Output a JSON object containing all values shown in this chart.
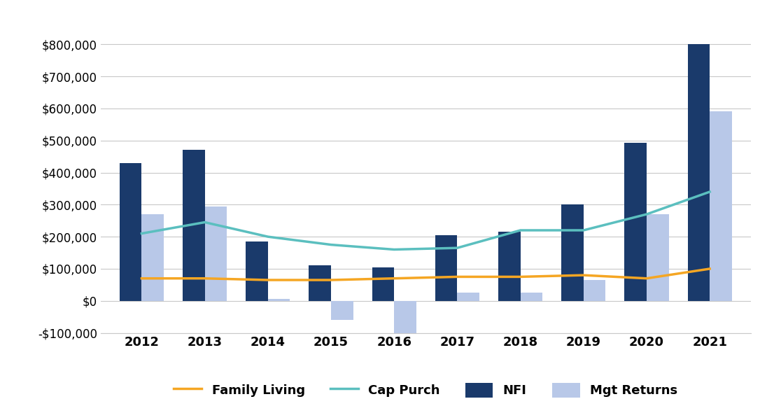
{
  "years": [
    2012,
    2013,
    2014,
    2015,
    2016,
    2017,
    2018,
    2019,
    2020,
    2021
  ],
  "nfi": [
    430000,
    470000,
    185000,
    110000,
    105000,
    205000,
    215000,
    300000,
    492000,
    800000
  ],
  "mgt_returns": [
    270000,
    295000,
    5000,
    -60000,
    -120000,
    25000,
    25000,
    65000,
    270000,
    590000
  ],
  "family_living": [
    70000,
    70000,
    65000,
    65000,
    70000,
    75000,
    75000,
    80000,
    70000,
    100000
  ],
  "cap_purch": [
    210000,
    245000,
    200000,
    175000,
    160000,
    165000,
    220000,
    220000,
    270000,
    340000
  ],
  "nfi_color": "#1a3a6b",
  "mgt_returns_color": "#b8c8e8",
  "family_living_color": "#f5a623",
  "cap_purch_color": "#5bbfbf",
  "ylim": [
    -100000,
    900000
  ],
  "yticks": [
    -100000,
    0,
    100000,
    200000,
    300000,
    400000,
    500000,
    600000,
    700000,
    800000
  ],
  "bar_width": 0.35,
  "legend_labels": [
    "NFI",
    "Mgt Returns",
    "Family Living",
    "Cap Purch"
  ]
}
